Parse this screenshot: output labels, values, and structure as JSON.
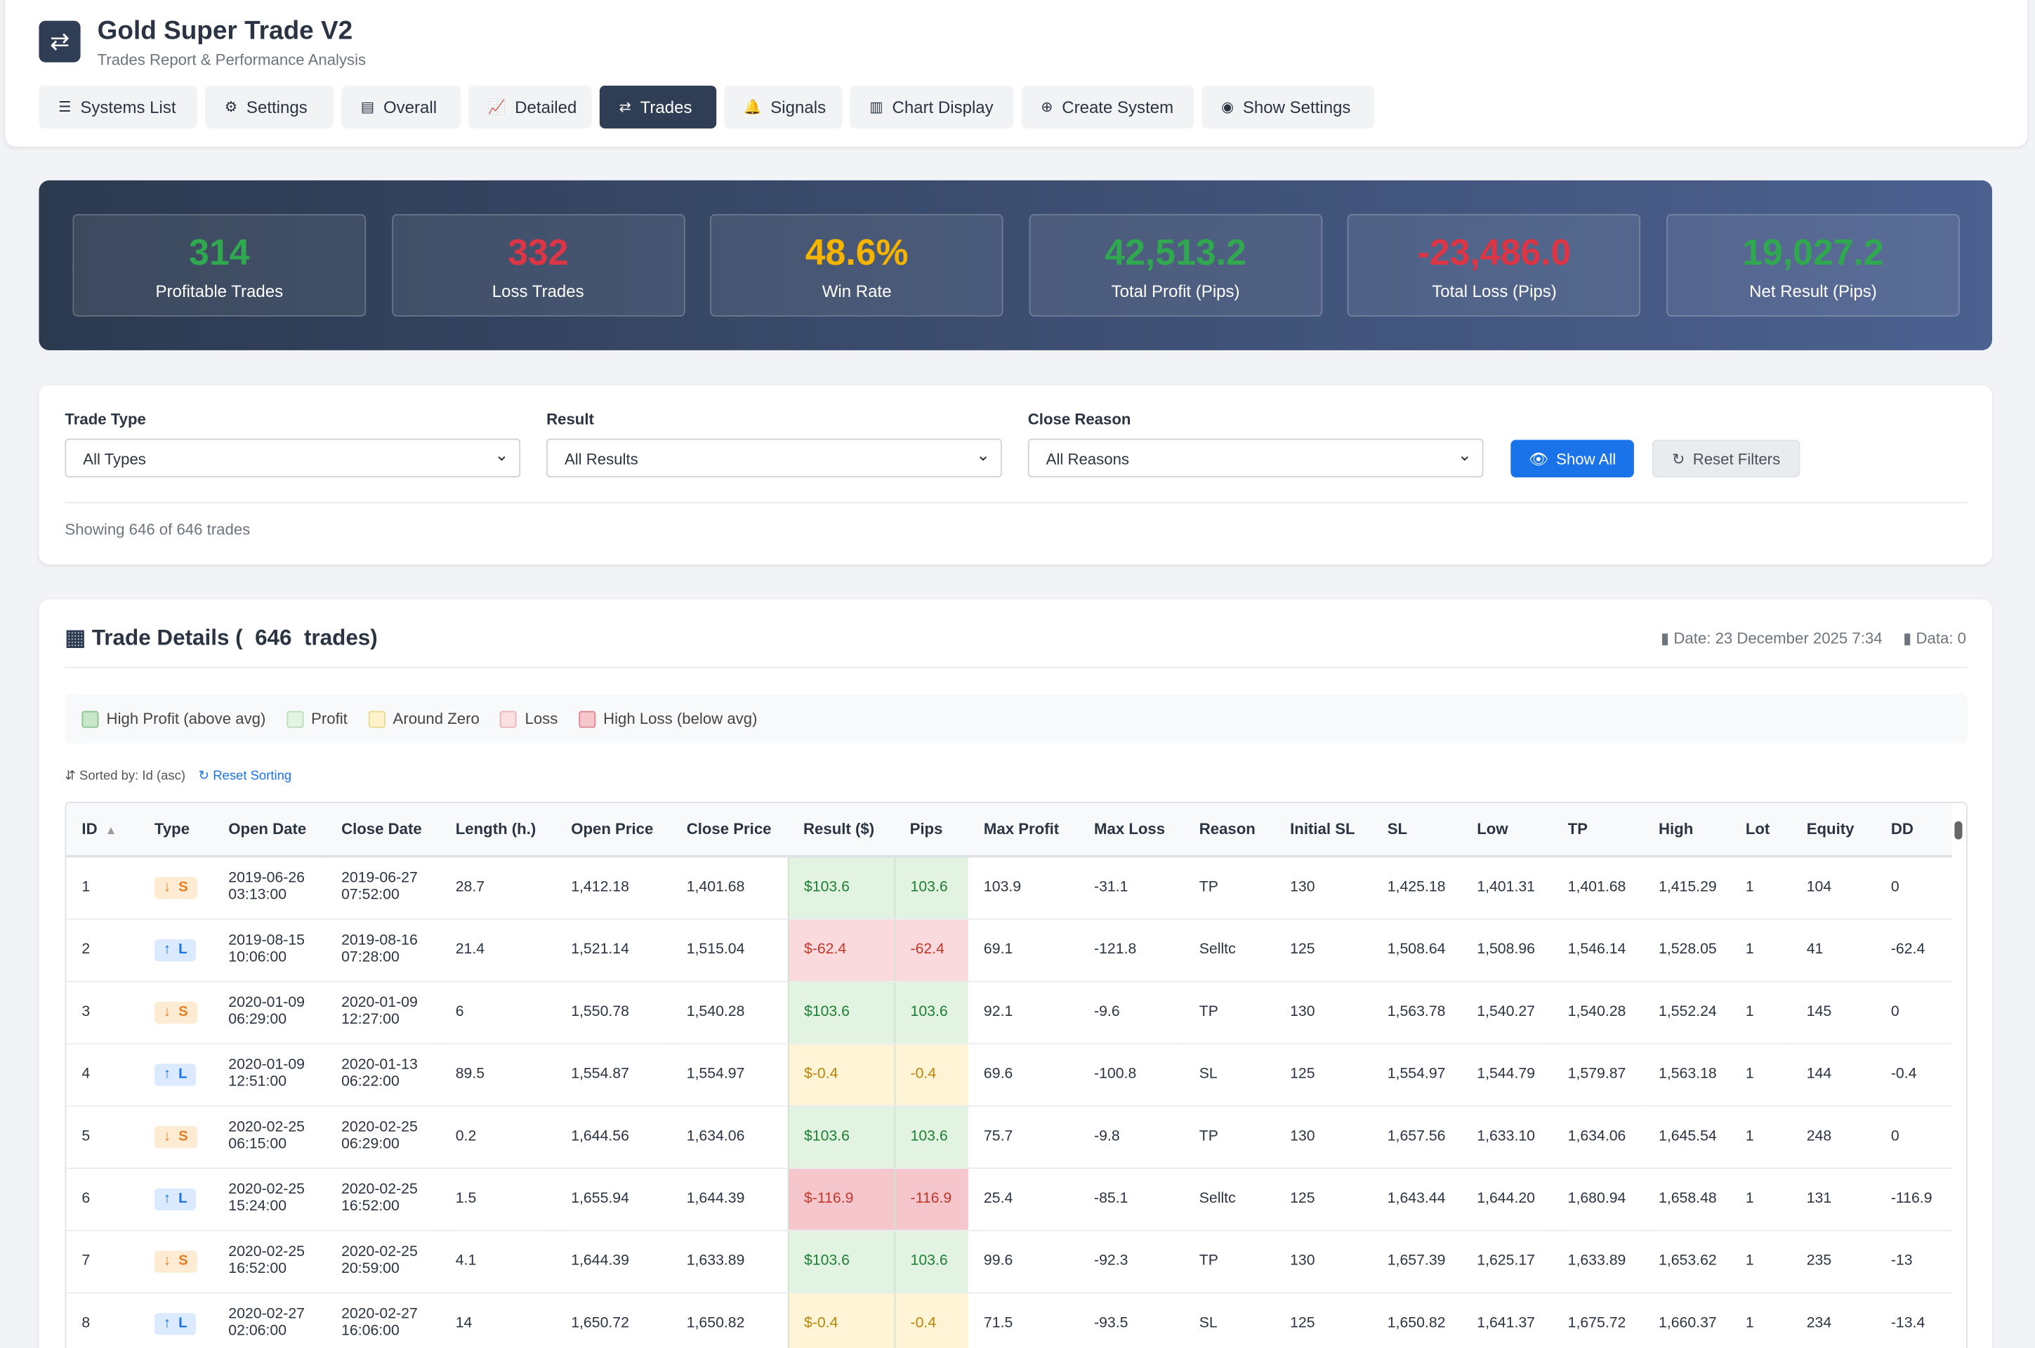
{
  "header": {
    "title": "Gold Super Trade V2",
    "subtitle": "Trades Report & Performance Analysis"
  },
  "nav": [
    {
      "label": "Systems List",
      "active": false
    },
    {
      "label": "Settings",
      "active": false
    },
    {
      "label": "Overall",
      "active": false
    },
    {
      "label": "Detailed",
      "active": false
    },
    {
      "label": "Trades",
      "active": true
    },
    {
      "label": "Signals",
      "active": false
    },
    {
      "label": "Chart Display",
      "active": false
    },
    {
      "label": "Create System",
      "active": false
    },
    {
      "label": "Show Settings",
      "active": false
    }
  ],
  "stats": [
    {
      "value": "314",
      "label": "Profitable Trades",
      "color": "#2fa84f"
    },
    {
      "value": "332",
      "label": "Loss Trades",
      "color": "#dc3545"
    },
    {
      "value": "48.6%",
      "label": "Win Rate",
      "color": "#f5b400"
    },
    {
      "value": "42,513.2",
      "label": "Total Profit (Pips)",
      "color": "#2fa84f"
    },
    {
      "value": "-23,486.0",
      "label": "Total Loss (Pips)",
      "color": "#dc3545"
    },
    {
      "value": "19,027.2",
      "label": "Net Result (Pips)",
      "color": "#2fa84f"
    }
  ],
  "filters": [
    {
      "label": "Trade Type",
      "selected": "All Types"
    },
    {
      "label": "Result",
      "selected": "All Results"
    },
    {
      "label": "Close Reason",
      "selected": "All Reasons"
    }
  ],
  "buttons": {
    "show_all": "Show All",
    "reset_filters": "Reset Filters"
  },
  "showing": "Showing 646 of 646 trades",
  "details": {
    "title": "Trade Details (  646  trades)",
    "date": "Date: 23 December 2025 7:34",
    "data": "Data: 0",
    "legend": [
      "High Profit (above avg)",
      "Profit",
      "Around Zero",
      "Loss",
      "High Loss (below avg)"
    ],
    "sorted": "Sorted by: Id (asc)",
    "reset_sorting": "Reset Sorting"
  },
  "table": {
    "columns": [
      "ID",
      "Type",
      "Open Date",
      "Close Date",
      "Length (h.)",
      "Open Price",
      "Close Price",
      "Result ($)",
      "Pips",
      "Max Profit",
      "Max Loss",
      "Reason",
      "Initial SL",
      "SL",
      "Low",
      "TP",
      "High",
      "Lot",
      "Equity",
      "DD"
    ],
    "rows": [
      [
        "1",
        "S",
        "2019-06-26 03:13:00",
        "2019-06-27 07:52:00",
        "28.7",
        "1,412.18",
        "1,401.68",
        "$103.6",
        "103.6",
        "103.9",
        "-31.1",
        "TP",
        "130",
        "1,425.18",
        "1,401.31",
        "1,401.68",
        "1,415.29",
        "1",
        "104",
        "0"
      ],
      [
        "2",
        "L",
        "2019-08-15 10:06:00",
        "2019-08-16 07:28:00",
        "21.4",
        "1,521.14",
        "1,515.04",
        "$-62.4",
        "-62.4",
        "69.1",
        "-121.8",
        "Selltc",
        "125",
        "1,508.64",
        "1,508.96",
        "1,546.14",
        "1,528.05",
        "1",
        "41",
        "-62.4"
      ],
      [
        "3",
        "S",
        "2020-01-09 06:29:00",
        "2020-01-09 12:27:00",
        "6",
        "1,550.78",
        "1,540.28",
        "$103.6",
        "103.6",
        "92.1",
        "-9.6",
        "TP",
        "130",
        "1,563.78",
        "1,540.27",
        "1,540.28",
        "1,552.24",
        "1",
        "145",
        "0"
      ],
      [
        "4",
        "L",
        "2020-01-09 12:51:00",
        "2020-01-13 06:22:00",
        "89.5",
        "1,554.87",
        "1,554.97",
        "$-0.4",
        "-0.4",
        "69.6",
        "-100.8",
        "SL",
        "125",
        "1,554.97",
        "1,544.79",
        "1,579.87",
        "1,563.18",
        "1",
        "144",
        "-0.4"
      ],
      [
        "5",
        "S",
        "2020-02-25 06:15:00",
        "2020-02-25 06:29:00",
        "0.2",
        "1,644.56",
        "1,634.06",
        "$103.6",
        "103.6",
        "75.7",
        "-9.8",
        "TP",
        "130",
        "1,657.56",
        "1,633.10",
        "1,634.06",
        "1,645.54",
        "1",
        "248",
        "0"
      ],
      [
        "6",
        "L",
        "2020-02-25 15:24:00",
        "2020-02-25 16:52:00",
        "1.5",
        "1,655.94",
        "1,644.39",
        "$-116.9",
        "-116.9",
        "25.4",
        "-85.1",
        "Selltc",
        "125",
        "1,643.44",
        "1,644.20",
        "1,680.94",
        "1,658.48",
        "1",
        "131",
        "-116.9"
      ],
      [
        "7",
        "S",
        "2020-02-25 16:52:00",
        "2020-02-25 20:59:00",
        "4.1",
        "1,644.39",
        "1,633.89",
        "$103.6",
        "103.6",
        "99.6",
        "-92.3",
        "TP",
        "130",
        "1,657.39",
        "1,625.17",
        "1,633.89",
        "1,653.62",
        "1",
        "235",
        "-13"
      ],
      [
        "8",
        "L",
        "2020-02-27 02:06:00",
        "2020-02-27 16:06:00",
        "14",
        "1,650.72",
        "1,650.82",
        "$-0.4",
        "-0.4",
        "71.5",
        "-93.5",
        "SL",
        "125",
        "1,650.82",
        "1,641.37",
        "1,675.72",
        "1,660.37",
        "1",
        "234",
        "-13.4"
      ]
    ]
  }
}
